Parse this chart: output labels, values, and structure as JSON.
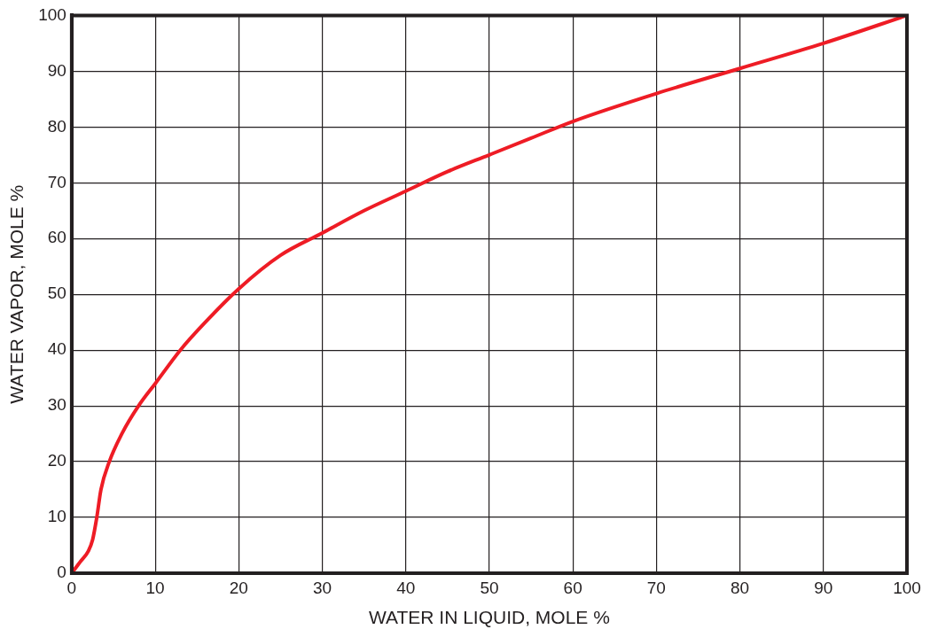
{
  "chart_data": {
    "type": "line",
    "xlabel": "WATER IN LIQUID, MOLE %",
    "ylabel": "WATER VAPOR, MOLE %",
    "series": [
      {
        "color": "#ee1c25",
        "x": [
          0,
          1,
          2,
          2.5,
          3,
          3.5,
          4.5,
          6,
          8,
          10,
          13,
          16,
          20,
          25,
          30,
          35,
          40,
          45,
          50,
          55,
          60,
          70,
          80,
          90,
          100
        ],
        "values": [
          0,
          2,
          4,
          6,
          10,
          15,
          20,
          25,
          30,
          34,
          40,
          45,
          51,
          57,
          61,
          65,
          68.5,
          72,
          75,
          78,
          81,
          86,
          90.5,
          95,
          100
        ]
      }
    ],
    "xlim": [
      0,
      100
    ],
    "ylim": [
      0,
      100
    ],
    "xticks": [
      0,
      10,
      20,
      30,
      40,
      50,
      60,
      70,
      80,
      90,
      100
    ],
    "yticks": [
      0,
      10,
      20,
      30,
      40,
      50,
      60,
      70,
      80,
      90,
      100
    ],
    "grid": true,
    "legend": false,
    "marker": "none",
    "line_style": "solid"
  }
}
